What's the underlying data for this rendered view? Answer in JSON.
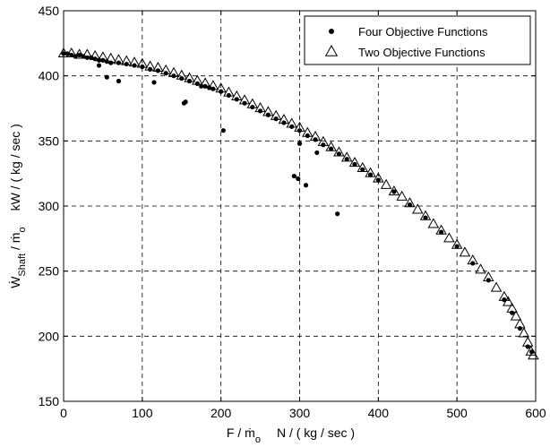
{
  "chart_data": {
    "type": "scatter",
    "title": "",
    "xlabel": "F / ṁo   N / ( kg / sec )",
    "ylabel": "WShaft / ṁo   kW / ( kg / sec )",
    "xlabel_parts": {
      "main": "F / ṁ",
      "sub": "o",
      "unit": "N / ( kg / sec )"
    },
    "ylabel_parts": {
      "main": "Ẇ",
      "sub": "Shaft",
      "div": " / ṁ",
      "sub2": "o",
      "unit": "kW / ( kg / sec )"
    },
    "xlim": [
      0,
      600
    ],
    "ylim": [
      150,
      450
    ],
    "xticks": [
      "0",
      "100",
      "200",
      "300",
      "400",
      "500",
      "600"
    ],
    "yticks": [
      "150",
      "200",
      "250",
      "300",
      "350",
      "400",
      "450"
    ],
    "grid": true,
    "legend_position": "top-right",
    "series": [
      {
        "name": "Four Objective Functions",
        "marker": "dot",
        "x": [
          0,
          5,
          10,
          15,
          20,
          25,
          30,
          35,
          40,
          45,
          50,
          55,
          60,
          70,
          80,
          90,
          100,
          110,
          120,
          130,
          140,
          150,
          160,
          170,
          180,
          190,
          200,
          210,
          220,
          230,
          240,
          250,
          260,
          270,
          280,
          290,
          300,
          310,
          320,
          330,
          340,
          350,
          360,
          370,
          380,
          390,
          400,
          420,
          440,
          460,
          480,
          500,
          520,
          540,
          560,
          570,
          580,
          590,
          595,
          45,
          55,
          70,
          115,
          153,
          155,
          203,
          293,
          298,
          300,
          308,
          322,
          348,
          175,
          185
        ],
        "y": [
          417,
          417,
          416,
          415,
          416,
          415,
          414,
          414,
          413,
          412,
          412,
          411,
          410,
          410,
          409,
          408,
          407,
          405,
          404,
          402,
          400,
          398,
          396,
          394,
          392,
          390,
          388,
          385,
          382,
          379,
          376,
          373,
          370,
          367,
          364,
          361,
          358,
          354,
          351,
          347,
          344,
          340,
          336,
          332,
          328,
          324,
          320,
          311,
          301,
          291,
          280,
          269,
          256,
          243,
          228,
          218,
          206,
          192,
          188,
          408,
          399,
          396,
          395,
          379,
          380,
          358,
          323,
          321,
          348,
          316,
          341,
          294,
          392,
          391
        ]
      },
      {
        "name": "Two Objective Functions",
        "marker": "triangle",
        "x": [
          0,
          10,
          20,
          30,
          40,
          50,
          60,
          70,
          80,
          90,
          100,
          110,
          120,
          130,
          140,
          150,
          160,
          170,
          180,
          190,
          200,
          210,
          220,
          230,
          240,
          250,
          260,
          270,
          280,
          290,
          300,
          310,
          320,
          330,
          340,
          350,
          360,
          370,
          380,
          390,
          400,
          410,
          420,
          430,
          440,
          450,
          460,
          470,
          480,
          490,
          500,
          510,
          520,
          530,
          540,
          550,
          560,
          565,
          570,
          575,
          580,
          585,
          590,
          594,
          597
        ],
        "y": [
          417,
          417,
          416,
          416,
          415,
          414,
          413,
          412,
          411,
          410,
          409,
          407,
          406,
          404,
          402,
          400,
          398,
          396,
          394,
          392,
          390,
          387,
          384,
          381,
          378,
          375,
          372,
          369,
          366,
          363,
          360,
          356,
          353,
          349,
          345,
          341,
          337,
          333,
          329,
          325,
          321,
          316,
          311,
          307,
          302,
          297,
          292,
          286,
          281,
          275,
          270,
          264,
          258,
          251,
          245,
          237,
          230,
          226,
          221,
          215,
          209,
          202,
          195,
          188,
          185
        ]
      }
    ]
  }
}
